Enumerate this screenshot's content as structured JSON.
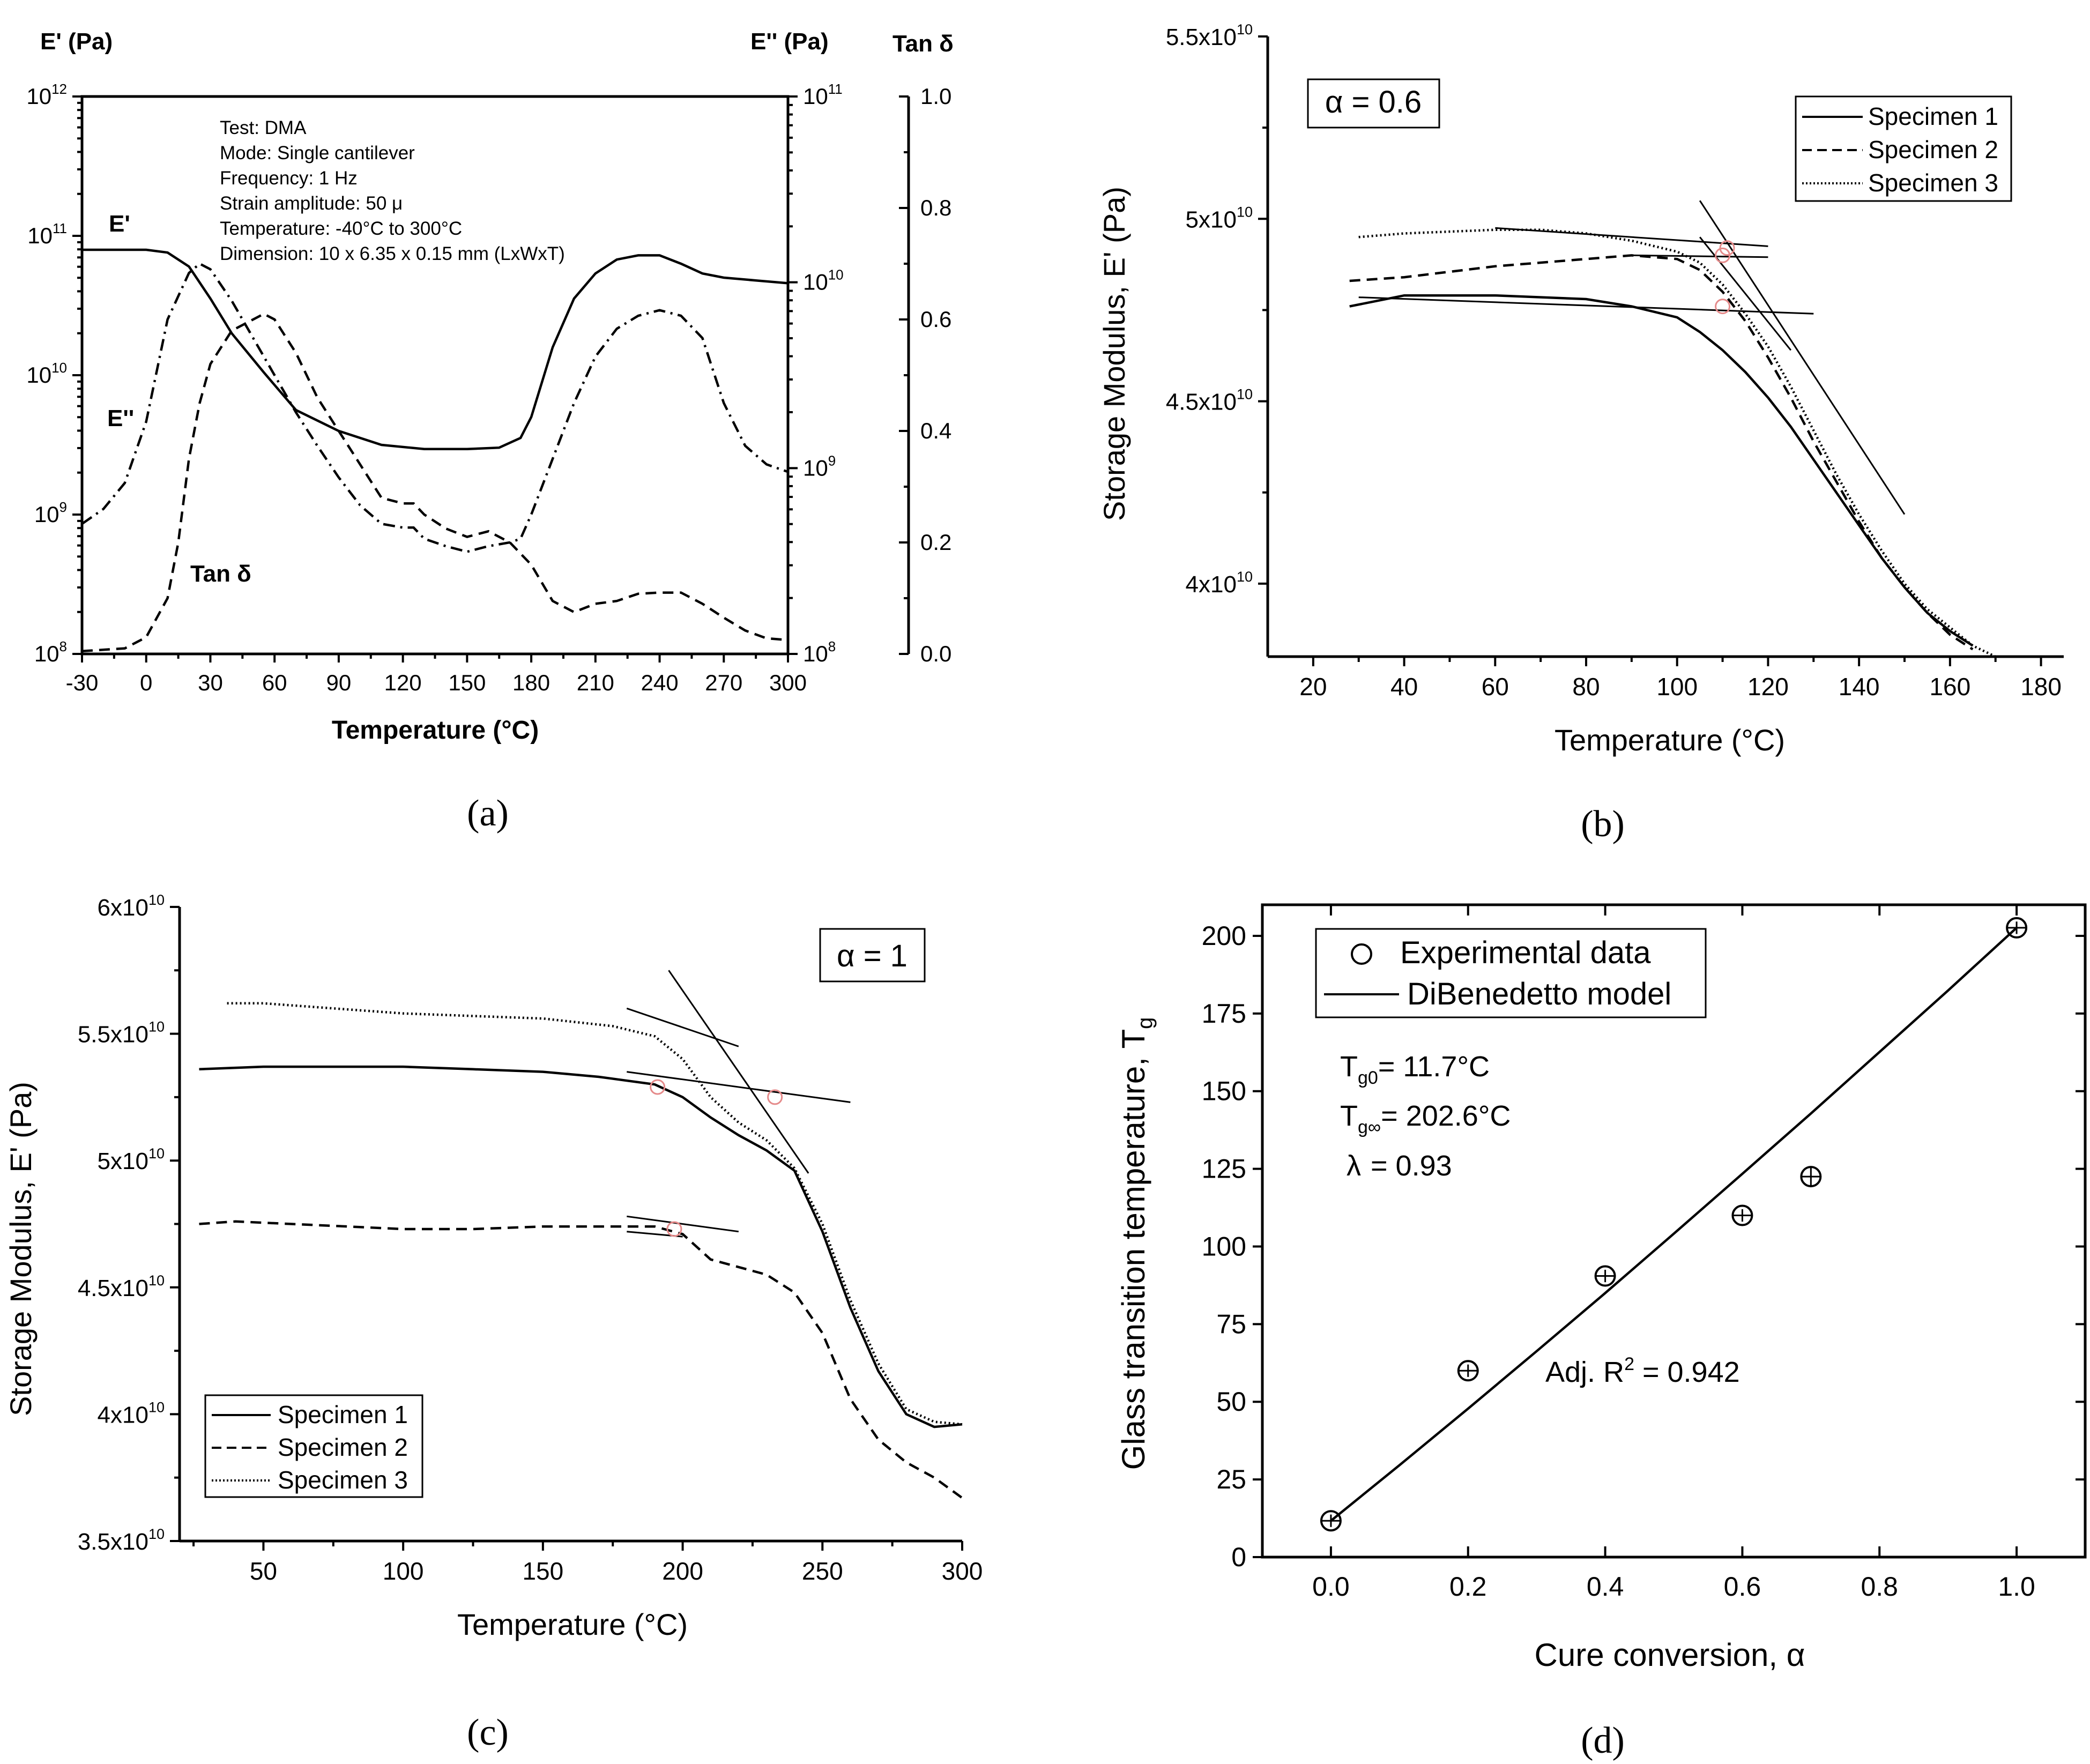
{
  "chart_data": [
    {
      "panel": "(a)",
      "type": "line",
      "xlabel": "Temperature (°C)",
      "y1_label": "E' (Pa)",
      "y2_label": "E'' (Pa)",
      "y3_label": "Tan δ",
      "xlim": [
        -30,
        300
      ],
      "x_ticks": [
        "-30",
        "0",
        "30",
        "60",
        "90",
        "120",
        "150",
        "180",
        "210",
        "240",
        "270",
        "300"
      ],
      "y1_ticks": [
        {
          "base": "10",
          "exp": "12"
        },
        {
          "base": "10",
          "exp": "11"
        },
        {
          "base": "10",
          "exp": "10"
        },
        {
          "base": "10",
          "exp": "9"
        },
        {
          "base": "10",
          "exp": "8"
        }
      ],
      "y2_ticks": [
        {
          "base": "10",
          "exp": "11"
        },
        {
          "base": "10",
          "exp": "10"
        },
        {
          "base": "10",
          "exp": "9"
        },
        {
          "base": "10",
          "exp": "8"
        }
      ],
      "y3_ticks": [
        "1.0",
        "0.8",
        "0.6",
        "0.4",
        "0.2",
        "0.0"
      ],
      "annotation_lines": [
        "Test: DMA",
        "Mode: Single cantilever",
        "Frequency: 1 Hz",
        "Strain amplitude: 50 μ",
        "Temperature: -40°C to 300°C",
        "Dimension: 10 x 6.35 x 0.15 mm (LxWxT)"
      ],
      "series_labels": {
        "storage": "E'",
        "loss": "E''",
        "tan": "Tan δ"
      },
      "series": [
        {
          "name": "E'",
          "axis": "log10 Pa (left)",
          "style": "solid",
          "x": [
            -30,
            -15,
            0,
            10,
            20,
            30,
            40,
            55,
            70,
            90,
            110,
            130,
            150,
            165,
            175,
            180,
            190,
            200,
            210,
            220,
            230,
            240,
            250,
            260,
            270,
            285,
            300
          ],
          "y": [
            10.9,
            10.9,
            10.9,
            10.88,
            10.78,
            10.55,
            10.3,
            10.02,
            9.75,
            9.6,
            9.5,
            9.47,
            9.47,
            9.48,
            9.55,
            9.7,
            10.2,
            10.55,
            10.73,
            10.83,
            10.86,
            10.86,
            10.8,
            10.73,
            10.7,
            10.68,
            10.66
          ]
        },
        {
          "name": "E''",
          "axis": "log10 Pa (right)",
          "style": "dash-dot",
          "x": [
            -30,
            -20,
            -10,
            0,
            10,
            20,
            25,
            30,
            40,
            50,
            60,
            70,
            80,
            90,
            100,
            110,
            120,
            125,
            130,
            140,
            150,
            160,
            170,
            175,
            180,
            190,
            200,
            210,
            220,
            230,
            240,
            250,
            260,
            270,
            280,
            290,
            300
          ],
          "y": [
            8.7,
            8.78,
            8.92,
            9.25,
            9.8,
            10.05,
            10.1,
            10.07,
            9.9,
            9.7,
            9.5,
            9.3,
            9.12,
            8.95,
            8.8,
            8.7,
            8.68,
            8.68,
            8.62,
            8.58,
            8.55,
            8.58,
            8.6,
            8.62,
            8.75,
            9.05,
            9.35,
            9.6,
            9.75,
            9.82,
            9.85,
            9.82,
            9.7,
            9.35,
            9.12,
            9.02,
            8.98
          ]
        },
        {
          "name": "Tan δ",
          "axis": "linear (far right)",
          "style": "dashed",
          "x": [
            -30,
            -10,
            0,
            10,
            15,
            20,
            25,
            30,
            40,
            50,
            55,
            60,
            70,
            80,
            90,
            100,
            110,
            120,
            125,
            130,
            140,
            150,
            160,
            170,
            180,
            190,
            200,
            210,
            220,
            230,
            240,
            250,
            260,
            270,
            280,
            290,
            300
          ],
          "y": [
            0.005,
            0.01,
            0.03,
            0.1,
            0.2,
            0.35,
            0.45,
            0.52,
            0.58,
            0.6,
            0.61,
            0.6,
            0.54,
            0.46,
            0.4,
            0.34,
            0.28,
            0.27,
            0.27,
            0.25,
            0.225,
            0.21,
            0.22,
            0.2,
            0.16,
            0.095,
            0.075,
            0.09,
            0.095,
            0.108,
            0.11,
            0.11,
            0.09,
            0.065,
            0.042,
            0.028,
            0.025
          ]
        }
      ]
    },
    {
      "panel": "(b)",
      "type": "line",
      "xlabel": "Temperature (°C)",
      "ylabel": "Storage Modulus, E' (Pa)",
      "inset_label": "α = 0.6",
      "xlim": [
        10,
        185
      ],
      "ylim": [
        38000000000.0,
        55000000000.0
      ],
      "x_ticks": [
        "20",
        "40",
        "60",
        "80",
        "100",
        "120",
        "140",
        "160",
        "180"
      ],
      "y_ticks": [
        {
          "mant": "5.5x",
          "base": "10",
          "exp": "10",
          "v": 55000000000.0
        },
        {
          "mant": "5x",
          "base": "10",
          "exp": "10",
          "v": 50000000000.0
        },
        {
          "mant": "4.5x",
          "base": "10",
          "exp": "10",
          "v": 45000000000.0
        },
        {
          "mant": "4x",
          "base": "10",
          "exp": "10",
          "v": 40000000000.0
        }
      ],
      "legend": [
        "Specimen 1",
        "Specimen 2",
        "Specimen 3"
      ],
      "series": [
        {
          "name": "Specimen 1",
          "style": "solid",
          "x": [
            28,
            40,
            60,
            80,
            90,
            100,
            105,
            110,
            115,
            120,
            125,
            130,
            135,
            140,
            145,
            150,
            155,
            160,
            165
          ],
          "y": [
            47600000000.0,
            47900000000.0,
            47900000000.0,
            47800000000.0,
            47600000000.0,
            47300000000.0,
            46900000000.0,
            46400000000.0,
            45800000000.0,
            45100000000.0,
            44300000000.0,
            43400000000.0,
            42500000000.0,
            41600000000.0,
            40700000000.0,
            39900000000.0,
            39200000000.0,
            38700000000.0,
            38300000000.0
          ]
        },
        {
          "name": "Specimen 2",
          "style": "dashed",
          "x": [
            28,
            40,
            60,
            80,
            90,
            100,
            105,
            110,
            115,
            120,
            125,
            130,
            135,
            140,
            145,
            150,
            155,
            160,
            165
          ],
          "y": [
            48300000000.0,
            48400000000.0,
            48700000000.0,
            48900000000.0,
            49000000000.0,
            48900000000.0,
            48600000000.0,
            48000000000.0,
            47200000000.0,
            46200000000.0,
            45100000000.0,
            43900000000.0,
            42800000000.0,
            41700000000.0,
            40700000000.0,
            39900000000.0,
            39200000000.0,
            38600000000.0,
            38200000000.0
          ]
        },
        {
          "name": "Specimen 3",
          "style": "dotted",
          "x": [
            30,
            40,
            50,
            60,
            70,
            80,
            90,
            100,
            105,
            110,
            115,
            120,
            125,
            130,
            135,
            140,
            145,
            150,
            155,
            160,
            165,
            170
          ],
          "y": [
            49500000000.0,
            49600000000.0,
            49650000000.0,
            49700000000.0,
            49700000000.0,
            49600000000.0,
            49400000000.0,
            49100000000.0,
            48800000000.0,
            48200000000.0,
            47400000000.0,
            46500000000.0,
            45400000000.0,
            44200000000.0,
            43000000000.0,
            41900000000.0,
            40900000000.0,
            40000000000.0,
            39300000000.0,
            38800000000.0,
            38300000000.0,
            38000000000.0
          ]
        }
      ],
      "tangents": [
        [
          [
            30,
            47850000000.0
          ],
          [
            130,
            47400000000.0
          ]
        ],
        [
          [
            90,
            49000000000.0
          ],
          [
            120,
            48950000000.0
          ]
        ],
        [
          [
            60,
            49750000000.0
          ],
          [
            120,
            49250000000.0
          ]
        ],
        [
          [
            105,
            50500000000.0
          ],
          [
            150,
            41900000000.0
          ]
        ],
        [
          [
            105,
            49500000000.0
          ],
          [
            125,
            46400000000.0
          ]
        ]
      ],
      "onset_points": [
        [
          110,
          47600000000.0
        ],
        [
          110,
          49000000000.0
        ],
        [
          111,
          49200000000.0
        ]
      ]
    },
    {
      "panel": "(c)",
      "type": "line",
      "xlabel": "Temperature (°C)",
      "ylabel": "Storage Modulus, E' (Pa)",
      "inset_label": "α = 1",
      "xlim": [
        20,
        300
      ],
      "ylim": [
        35000000000.0,
        60000000000.0
      ],
      "x_ticks": [
        "50",
        "100",
        "150",
        "200",
        "250",
        "300"
      ],
      "y_ticks": [
        {
          "mant": "6x",
          "base": "10",
          "exp": "10",
          "v": 60000000000.0
        },
        {
          "mant": "5.5x",
          "base": "10",
          "exp": "10",
          "v": 55000000000.0
        },
        {
          "mant": "5x",
          "base": "10",
          "exp": "10",
          "v": 50000000000.0
        },
        {
          "mant": "4.5x",
          "base": "10",
          "exp": "10",
          "v": 45000000000.0
        },
        {
          "mant": "4x",
          "base": "10",
          "exp": "10",
          "v": 40000000000.0
        },
        {
          "mant": "3.5x",
          "base": "10",
          "exp": "10",
          "v": 35000000000.0
        }
      ],
      "legend": [
        "Specimen 1",
        "Specimen 2",
        "Specimen 3"
      ],
      "series": [
        {
          "name": "Specimen 1",
          "style": "solid",
          "x": [
            27,
            50,
            75,
            100,
            125,
            150,
            170,
            190,
            200,
            210,
            220,
            230,
            240,
            250,
            260,
            270,
            280,
            290,
            300
          ],
          "y": [
            53600000000.0,
            53700000000.0,
            53700000000.0,
            53700000000.0,
            53600000000.0,
            53500000000.0,
            53300000000.0,
            53000000000.0,
            52500000000.0,
            51700000000.0,
            51000000000.0,
            50400000000.0,
            49600000000.0,
            47200000000.0,
            44200000000.0,
            41700000000.0,
            40000000000.0,
            39500000000.0,
            39600000000.0
          ]
        },
        {
          "name": "Specimen 2",
          "style": "dashed",
          "x": [
            27,
            40,
            60,
            80,
            100,
            125,
            150,
            175,
            190,
            200,
            210,
            220,
            230,
            240,
            250,
            260,
            270,
            280,
            290,
            300
          ],
          "y": [
            47500000000.0,
            47600000000.0,
            47500000000.0,
            47400000000.0,
            47300000000.0,
            47300000000.0,
            47400000000.0,
            47400000000.0,
            47400000000.0,
            47100000000.0,
            46100000000.0,
            45800000000.0,
            45500000000.0,
            44800000000.0,
            43200000000.0,
            40600000000.0,
            39000000000.0,
            38100000000.0,
            37500000000.0,
            36700000000.0
          ]
        },
        {
          "name": "Specimen 3",
          "style": "dotted",
          "x": [
            37,
            50,
            75,
            100,
            125,
            150,
            175,
            190,
            200,
            210,
            220,
            230,
            240,
            250,
            260,
            270,
            280,
            290,
            300
          ],
          "y": [
            56200000000.0,
            56200000000.0,
            56000000000.0,
            55800000000.0,
            55700000000.0,
            55600000000.0,
            55300000000.0,
            54900000000.0,
            54000000000.0,
            52500000000.0,
            51500000000.0,
            50800000000.0,
            49700000000.0,
            47500000000.0,
            44500000000.0,
            42000000000.0,
            40200000000.0,
            39700000000.0,
            39600000000.0
          ]
        }
      ],
      "tangents": [
        [
          [
            180,
            56000000000.0
          ],
          [
            220,
            54500000000.0
          ]
        ],
        [
          [
            180,
            53500000000.0
          ],
          [
            260,
            52300000000.0
          ]
        ],
        [
          [
            195,
            57500000000.0
          ],
          [
            245,
            49500000000.0
          ]
        ],
        [
          [
            180,
            47800000000.0
          ],
          [
            220,
            47200000000.0
          ]
        ],
        [
          [
            180,
            47200000000.0
          ],
          [
            200,
            47000000000.0
          ]
        ]
      ],
      "onset_points": [
        [
          191,
          52900000000.0
        ],
        [
          233,
          52500000000.0
        ],
        [
          197,
          47300000000.0
        ]
      ]
    },
    {
      "panel": "(d)",
      "type": "scatter",
      "xlabel": "Cure conversion, α",
      "ylabel": "Glass transition temperature, T",
      "ylabel_sub": "g",
      "xlim": [
        -0.1,
        1.1
      ],
      "ylim": [
        0,
        210
      ],
      "x_ticks": [
        "0.0",
        "0.2",
        "0.4",
        "0.6",
        "0.8",
        "1.0"
      ],
      "y_ticks": [
        "0",
        "25",
        "50",
        "75",
        "100",
        "125",
        "150",
        "175",
        "200"
      ],
      "legend": [
        "Experimental data",
        "DiBenedetto model"
      ],
      "params": [
        "= 11.7°C",
        "= 202.6°C",
        "= 0.93"
      ],
      "param_symbols": [
        {
          "sym": "T",
          "sub": "g0"
        },
        {
          "sym": "T",
          "sub": "g∞"
        },
        {
          "sym": "λ",
          "sub": ""
        }
      ],
      "fit_text": "Adj. R",
      "fit_exp": "2",
      "fit_value": " = 0.942",
      "points": {
        "x": [
          0.0,
          0.2,
          0.4,
          0.6,
          0.7,
          1.0
        ],
        "y": [
          11.7,
          60,
          90.5,
          110,
          122.5,
          202.6
        ],
        "error": [
          2,
          2,
          2,
          2,
          3,
          2
        ]
      },
      "model": {
        "x": [
          0.0,
          0.1,
          0.2,
          0.3,
          0.4,
          0.5,
          0.6,
          0.7,
          0.8,
          0.9,
          1.0
        ],
        "y": [
          11.7,
          29.6,
          47.8,
          66.3,
          85.0,
          104.1,
          123.4,
          142.8,
          162.6,
          182.4,
          202.6
        ]
      }
    }
  ],
  "panel_captions": [
    "(a)",
    "(b)",
    "(c)",
    "(d)"
  ]
}
